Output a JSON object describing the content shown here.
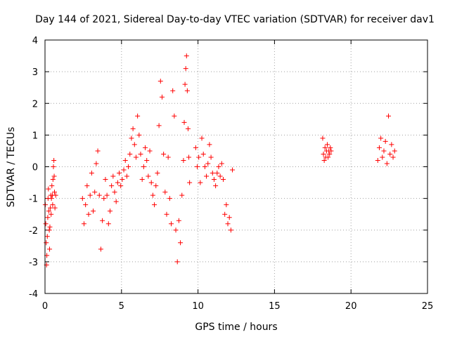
{
  "chart_data": {
    "type": "scatter",
    "title": "Day 144 of 2021, Sidereal Day-to-day VTEC variation (SDTVAR) for receiver dav1",
    "xlabel": "GPS time / hours",
    "ylabel": "SDTVAR / TECUs",
    "xlim": [
      0,
      25
    ],
    "ylim": [
      -4,
      4
    ],
    "xticks": [
      0,
      5,
      10,
      15,
      20,
      25
    ],
    "yticks": [
      -4,
      -3,
      -2,
      -1,
      0,
      1,
      2,
      3,
      4
    ],
    "xtick_labels": [
      "0",
      "5",
      "10",
      "15",
      "20",
      "25"
    ],
    "ytick_labels": [
      "-4",
      "-3",
      "-2",
      "-1",
      "0",
      "1",
      "2",
      "3",
      "4"
    ],
    "grid": true,
    "marker": "+",
    "color": "#ff0000",
    "series": [
      {
        "name": "dav1",
        "x": [
          0.02,
          0.05,
          0.08,
          0.1,
          0.12,
          0.15,
          0.18,
          0.2,
          0.22,
          0.25,
          0.28,
          0.3,
          0.32,
          0.35,
          0.38,
          0.4,
          0.42,
          0.45,
          0.48,
          0.5,
          0.52,
          0.55,
          0.58,
          0.6,
          0.62,
          0.65,
          0.7,
          2.45,
          2.55,
          2.65,
          2.75,
          2.85,
          2.95,
          3.05,
          3.15,
          3.25,
          3.35,
          3.45,
          3.55,
          3.65,
          3.75,
          3.85,
          3.95,
          4.05,
          4.15,
          4.25,
          4.35,
          4.45,
          4.55,
          4.65,
          4.75,
          4.85,
          4.95,
          5.05,
          5.15,
          5.25,
          5.35,
          5.45,
          5.55,
          5.65,
          5.75,
          5.85,
          5.95,
          6.05,
          6.15,
          6.25,
          6.35,
          6.45,
          6.55,
          6.65,
          6.75,
          6.85,
          6.95,
          7.05,
          7.15,
          7.25,
          7.35,
          7.45,
          7.55,
          7.65,
          7.75,
          7.85,
          7.95,
          8.05,
          8.15,
          8.25,
          8.35,
          8.45,
          8.55,
          8.65,
          8.75,
          8.85,
          8.95,
          9.05,
          9.1,
          9.15,
          9.2,
          9.25,
          9.3,
          9.35,
          9.4,
          9.45,
          9.85,
          9.95,
          10.05,
          10.15,
          10.25,
          10.35,
          10.45,
          10.55,
          10.65,
          10.75,
          10.85,
          10.95,
          11.05,
          11.15,
          11.25,
          11.35,
          11.45,
          11.55,
          11.65,
          11.75,
          11.85,
          11.95,
          12.05,
          12.15,
          12.25,
          18.15,
          18.2,
          18.25,
          18.3,
          18.35,
          18.4,
          18.45,
          18.5,
          18.55,
          18.6,
          18.65,
          18.7,
          21.75,
          21.85,
          21.95,
          22.05,
          22.15,
          22.25,
          22.35,
          22.45,
          22.55,
          22.65,
          22.75,
          22.85
        ],
        "y": [
          -1.2,
          -1.8,
          -2.4,
          -3.1,
          -2.8,
          -2.2,
          -1.6,
          -1.0,
          -0.7,
          -1.4,
          -2.0,
          -2.6,
          -1.9,
          -1.3,
          -0.9,
          -1.5,
          -1.0,
          -0.6,
          -0.9,
          -1.2,
          -0.4,
          0.0,
          0.2,
          -0.3,
          -0.8,
          -1.3,
          -0.9,
          -1.0,
          -1.8,
          -1.2,
          -0.6,
          -1.5,
          -0.9,
          -0.2,
          -1.4,
          -0.8,
          0.1,
          0.5,
          -0.9,
          -2.6,
          -1.7,
          -1.0,
          -0.4,
          -0.9,
          -1.8,
          -1.4,
          -0.6,
          -0.3,
          -0.8,
          -1.1,
          -0.5,
          -0.2,
          -0.6,
          -0.4,
          -0.1,
          0.2,
          -0.3,
          0.0,
          0.4,
          0.9,
          1.2,
          0.7,
          0.3,
          1.6,
          1.0,
          0.4,
          -0.4,
          0.0,
          0.6,
          0.2,
          -0.3,
          0.5,
          -0.5,
          -0.9,
          -1.2,
          -0.6,
          -0.2,
          1.3,
          2.7,
          2.2,
          0.4,
          -0.8,
          -1.5,
          0.3,
          -1.0,
          -1.8,
          2.4,
          1.6,
          -2.0,
          -3.0,
          -1.7,
          -2.4,
          -0.9,
          0.2,
          1.4,
          2.6,
          3.1,
          3.5,
          2.4,
          1.2,
          0.3,
          -0.5,
          0.6,
          0.0,
          0.3,
          -0.5,
          0.9,
          0.4,
          0.0,
          -0.3,
          0.1,
          0.7,
          0.3,
          -0.2,
          -0.4,
          -0.6,
          -0.2,
          0.0,
          -0.3,
          0.1,
          -0.4,
          -1.5,
          -1.2,
          -1.8,
          -1.6,
          -2.0,
          -0.1,
          0.9,
          0.4,
          0.2,
          0.6,
          0.3,
          0.5,
          0.7,
          0.3,
          0.5,
          0.4,
          0.6,
          0.5,
          0.2,
          0.6,
          0.9,
          0.3,
          0.5,
          0.8,
          0.1,
          1.6,
          0.4,
          0.7,
          0.3,
          0.5
        ]
      }
    ]
  }
}
